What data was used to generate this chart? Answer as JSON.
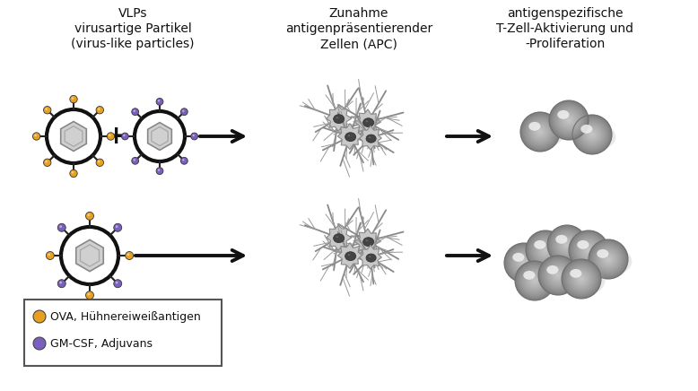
{
  "title_col1_line1": "VLPs",
  "title_col1_line2": "virusartige Partikel",
  "title_col1_line3": "(virus-like particles)",
  "title_col2_line1": "Zunahme",
  "title_col2_line2": "antigenpräsentierender",
  "title_col2_line3": "Zellen (APC)",
  "title_col3_line1": "antigenspezifische",
  "title_col3_line2": "T-Zell-Aktivierung und",
  "title_col3_line3": "-Proliferation",
  "legend_item1_color": "#E8A020",
  "legend_item1_text": "OVA, Hühnereiweißantigen",
  "legend_item2_color": "#7B5FBF",
  "legend_item2_text": "GM-CSF, Adjuvans",
  "background_color": "#ffffff",
  "orange_dot_color": "#E8A020",
  "purple_dot_color": "#7B5FBF",
  "arrow_color": "#111111",
  "font_size_title": 10,
  "font_size_legend": 9
}
